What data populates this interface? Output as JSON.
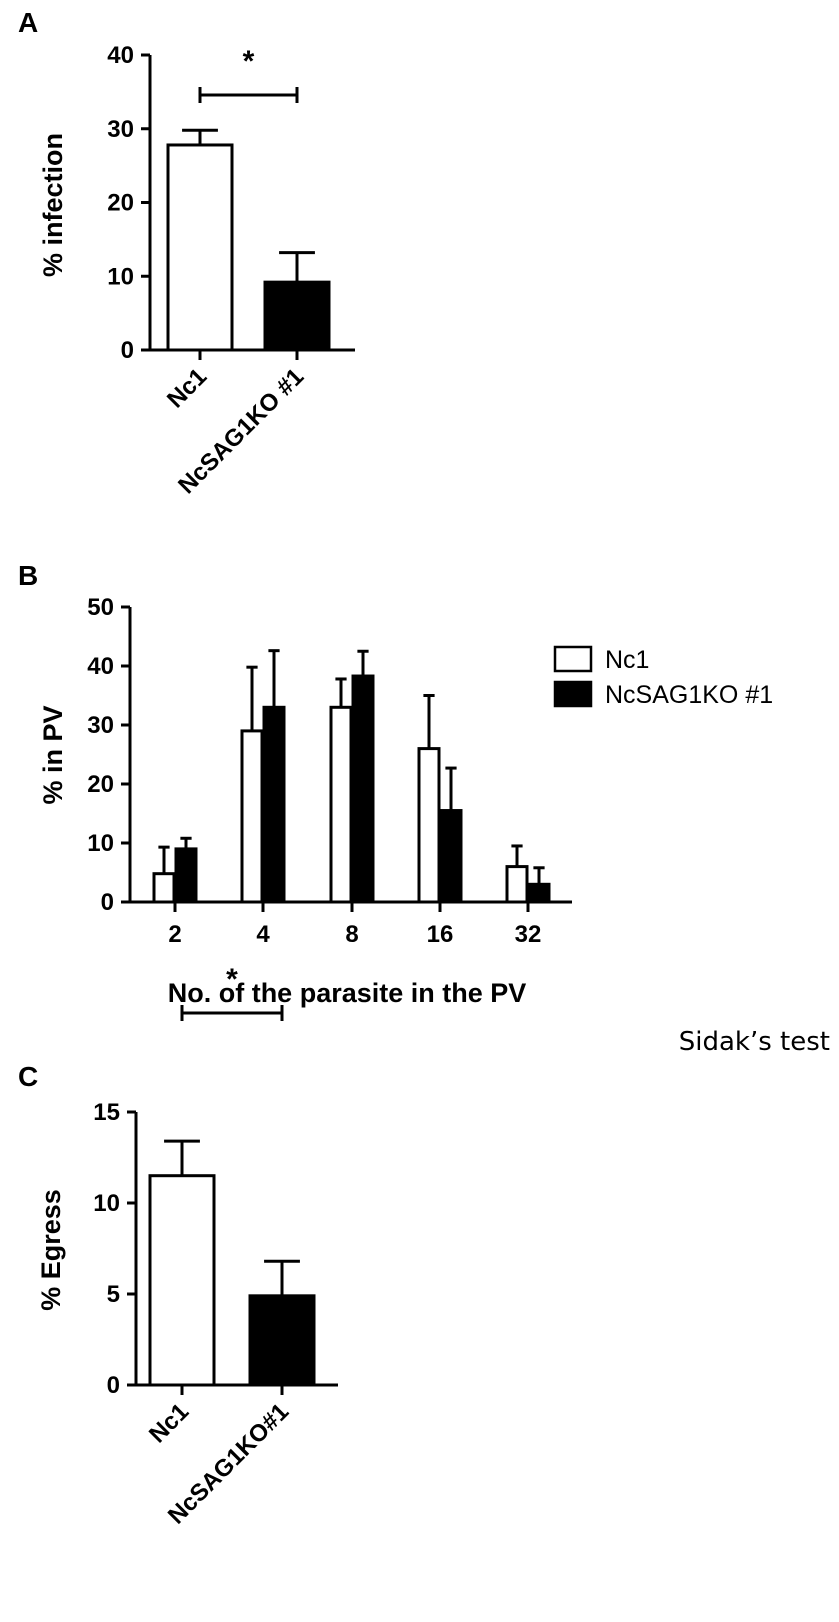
{
  "chart_data": [
    {
      "panel": "A",
      "type": "bar",
      "categories": [
        "Nc1",
        "NcSAG1KO #1"
      ],
      "values": [
        27.8,
        9.2
      ],
      "errors": [
        2.0,
        4.0
      ],
      "fills": [
        "#ffffff",
        "#000000"
      ],
      "ylabel": "% infection",
      "xlabel": "",
      "ylim": [
        0,
        40
      ],
      "yticks": [
        0,
        10,
        20,
        30,
        40
      ],
      "significance": "*"
    },
    {
      "panel": "B",
      "type": "bar",
      "categories": [
        "2",
        "4",
        "8",
        "16",
        "32"
      ],
      "series": [
        {
          "name": "Nc1",
          "values": [
            4.8,
            29.0,
            33.0,
            26.0,
            6.0
          ],
          "errors": [
            4.5,
            10.8,
            4.8,
            9.0,
            3.5
          ],
          "fill": "#ffffff"
        },
        {
          "name": "NcSAG1KO #1",
          "values": [
            9.0,
            33.0,
            38.3,
            15.5,
            3.0
          ],
          "errors": [
            1.8,
            9.6,
            4.2,
            7.2,
            2.8
          ],
          "fill": "#000000"
        }
      ],
      "ylabel": "% in PV",
      "xlabel": "No. of the parasite in the PV",
      "ylim": [
        0,
        50
      ],
      "yticks": [
        0,
        10,
        20,
        30,
        40,
        50
      ],
      "legend_position": "top-right"
    },
    {
      "panel": "C",
      "type": "bar",
      "categories": [
        "Nc1",
        "NcSAG1KO#1"
      ],
      "values": [
        11.5,
        4.9
      ],
      "errors": [
        1.9,
        1.9
      ],
      "fills": [
        "#ffffff",
        "#000000"
      ],
      "ylabel": "% Egress",
      "xlabel": "",
      "ylim": [
        0,
        15
      ],
      "yticks": [
        0,
        5,
        10,
        15
      ],
      "significance": "*"
    }
  ],
  "note": "Sidak’s test"
}
